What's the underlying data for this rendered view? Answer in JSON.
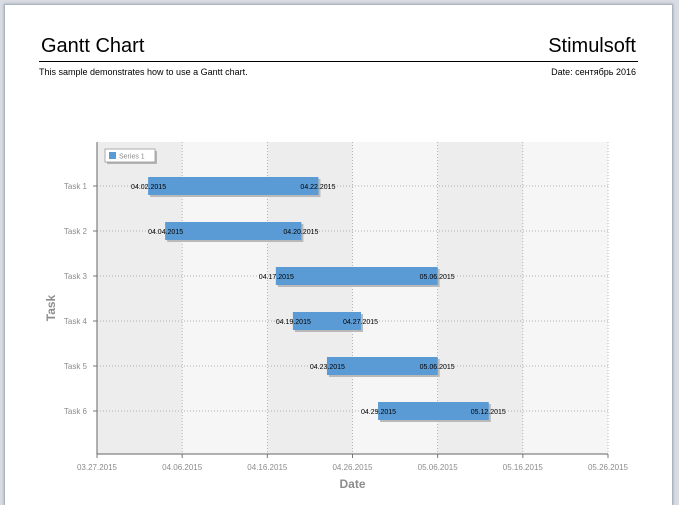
{
  "page": {
    "title": "Gantt Chart",
    "brand": "Stimulsoft",
    "description": "This sample demonstrates how to use a Gantt chart.",
    "date_label": "Date: сентябрь 2016"
  },
  "colors": {
    "bar": "#5b9bd5",
    "plot_bg": "#f6f6f6",
    "grid": "#9a9a9a",
    "axis_text": "#8c8c8c"
  },
  "chart_data": {
    "type": "gantt",
    "xlabel": "Date",
    "ylabel": "Task",
    "legend": {
      "entries": [
        "Series 1"
      ],
      "placement": "top-left"
    },
    "x_ticks": [
      "03.27.2015",
      "04.06.2015",
      "04.16.2015",
      "04.26.2015",
      "05.06.2015",
      "05.16.2015",
      "05.26.2015"
    ],
    "xlim": [
      "2015-03-27",
      "2015-05-26"
    ],
    "grid": true,
    "series": [
      {
        "name": "Series 1",
        "tasks": [
          {
            "task": "Task 1",
            "start": "2015-04-02",
            "end": "2015-04-22",
            "start_label": "04.02.2015",
            "end_label": "04.22.2015"
          },
          {
            "task": "Task 2",
            "start": "2015-04-04",
            "end": "2015-04-20",
            "start_label": "04.04.2015",
            "end_label": "04.20.2015"
          },
          {
            "task": "Task 3",
            "start": "2015-04-17",
            "end": "2015-05-06",
            "start_label": "04.17.2015",
            "end_label": "05.06.2015"
          },
          {
            "task": "Task 4",
            "start": "2015-04-19",
            "end": "2015-04-27",
            "start_label": "04.19.2015",
            "end_label": "04.27.2015"
          },
          {
            "task": "Task 5",
            "start": "2015-04-23",
            "end": "2015-05-06",
            "start_label": "04.23.2015",
            "end_label": "05.06.2015"
          },
          {
            "task": "Task 6",
            "start": "2015-04-29",
            "end": "2015-05-12",
            "start_label": "04.29.2015",
            "end_label": "05.12.2015"
          }
        ]
      }
    ]
  }
}
